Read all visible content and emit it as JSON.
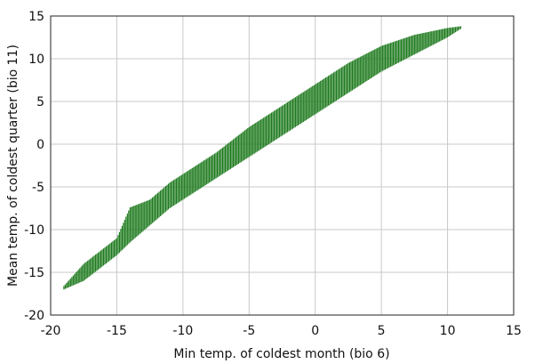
{
  "chart_data": {
    "type": "scatter",
    "xlabel": "Min temp. of coldest month (bio 6)",
    "ylabel": "Mean temp. of coldest quarter (bio 11)",
    "xlim": [
      -20,
      15
    ],
    "ylim": [
      -20,
      15
    ],
    "x_ticks": [
      -20,
      -15,
      -10,
      -5,
      0,
      5,
      10,
      15
    ],
    "y_ticks": [
      -20,
      -15,
      -10,
      -5,
      0,
      5,
      10,
      15
    ],
    "x_tick_labels": [
      "-20",
      "-15",
      "-10",
      "-5",
      "0",
      "5",
      "10",
      "15"
    ],
    "y_tick_labels": [
      "-20",
      "-15",
      "-10",
      "-5",
      "0",
      "5",
      "10",
      "15"
    ],
    "grid": true,
    "marker_color": "#1e7a1e",
    "point_cloud_envelope": {
      "x": [
        -19,
        -17.5,
        -15,
        -14,
        -12.5,
        -11,
        -10,
        -7.5,
        -5,
        -2.5,
        0,
        2.5,
        5,
        7.5,
        10,
        11
      ],
      "y_low": [
        -17,
        -16,
        -13,
        -11.5,
        -9.5,
        -7.5,
        -6.5,
        -4,
        -1.5,
        1,
        3.5,
        6,
        8.5,
        10.5,
        12.5,
        13.5
      ],
      "y_high": [
        -16.6,
        -14,
        -11,
        -7.4,
        -6.5,
        -4.5,
        -3.5,
        -1,
        2,
        4.5,
        7,
        9.5,
        11.5,
        12.8,
        13.6,
        13.8
      ]
    }
  }
}
